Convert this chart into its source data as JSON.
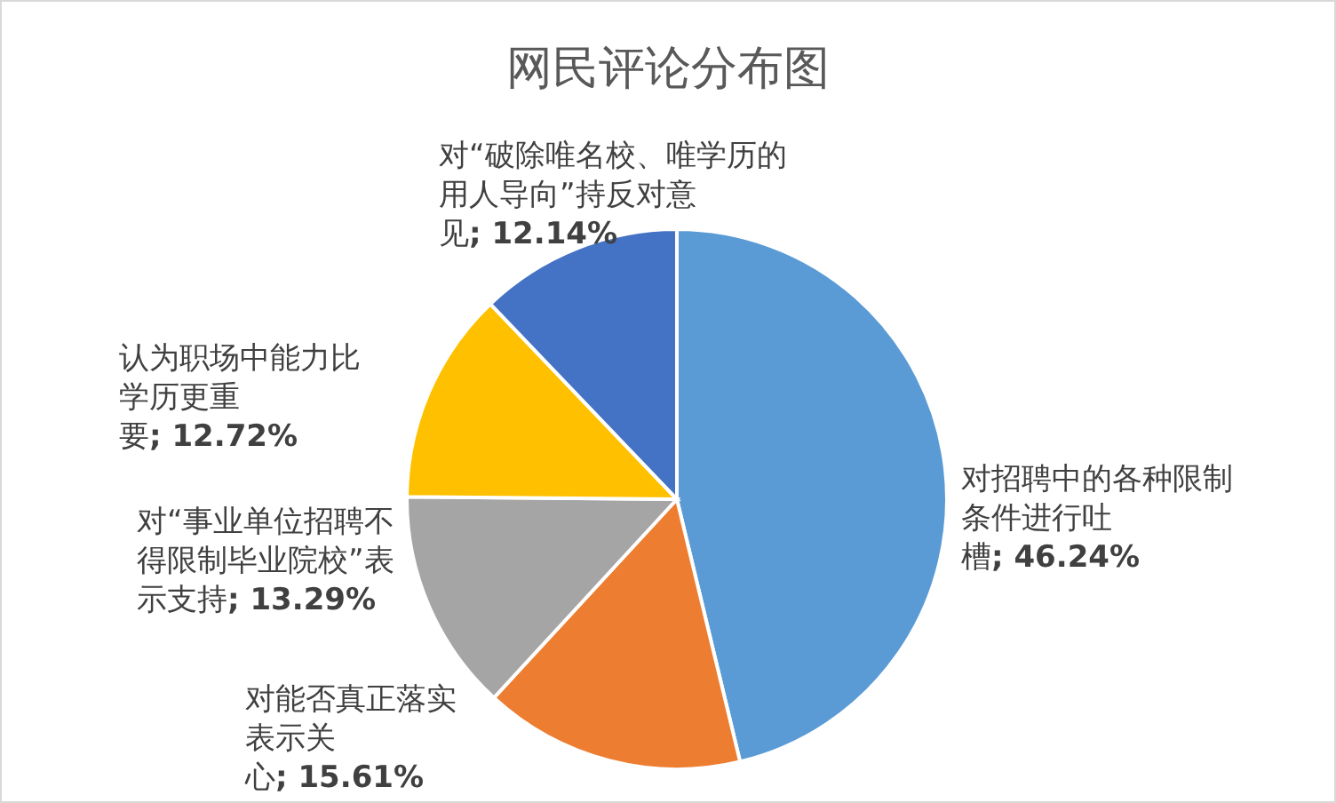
{
  "chart_data": {
    "type": "pie",
    "title": "网民评论分布图",
    "categories": [
      "对招聘中的各种限制条件进行吐槽",
      "对能否真正落实表示关心",
      "对“事业单位招聘不得限制毕业院校”表示支持",
      "认为职场中能力比学历更重要",
      "对“破除唯名校、唯学历的用人导向”持反对意见"
    ],
    "values": [
      46.24,
      15.61,
      13.29,
      12.72,
      12.14
    ],
    "value_labels": [
      "; 46.24%",
      "; 15.61%",
      "; 13.29%",
      "; 12.72%",
      "; 12.14%"
    ],
    "colors": [
      "#5b9bd5",
      "#ed7d31",
      "#a5a5a5",
      "#ffc000",
      "#4472c4"
    ]
  }
}
